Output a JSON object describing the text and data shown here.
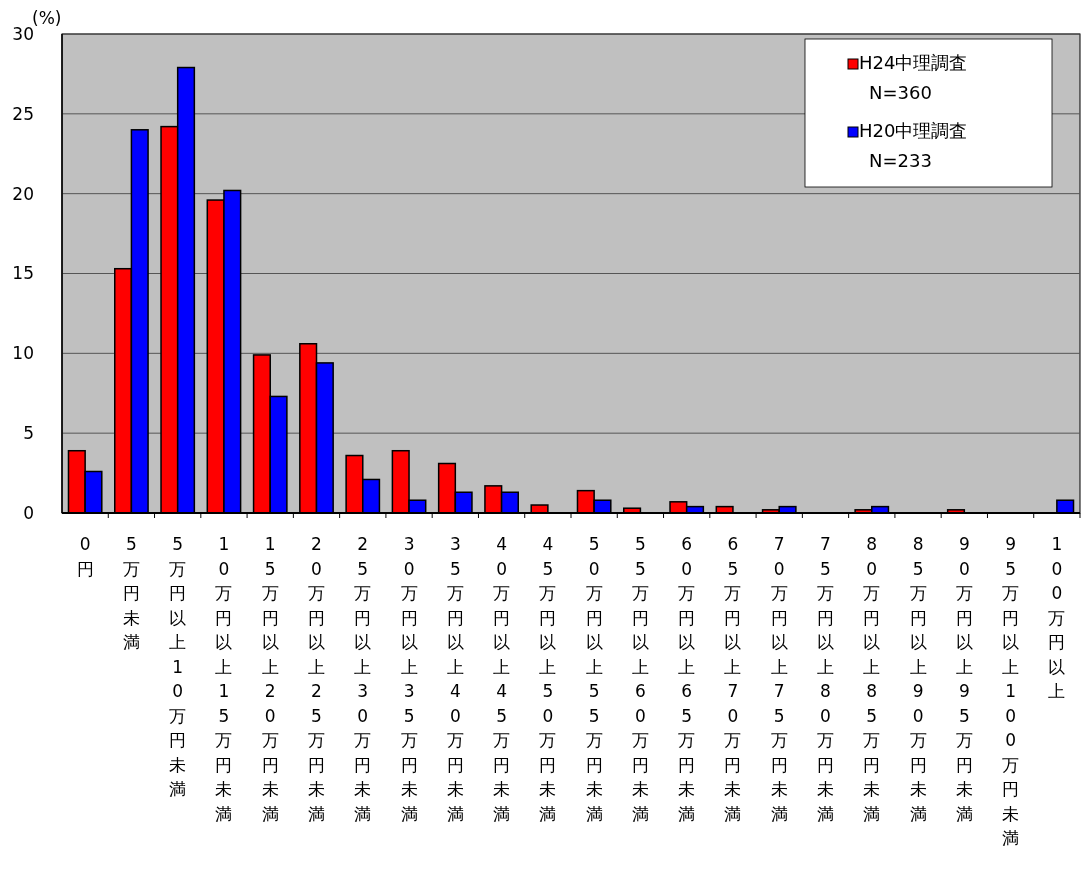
{
  "chart_data": {
    "type": "bar",
    "ylabel": "(%)",
    "categories": [
      "0円",
      "5万円未満",
      "5万円以上10万円未満",
      "10万円以上15万円未満",
      "15万円以上20万円未満",
      "20万円以上25万円未満",
      "25万円以上30万円未満",
      "30万円以上35万円未満",
      "35万円以上40万円未満",
      "40万円以上45万円未満",
      "45万円以上50万円未満",
      "50万円以上55万円未満",
      "55万円以上60万円未満",
      "60万円以上65万円未満",
      "65万円以上70万円未満",
      "70万円以上75万円未満",
      "75万円以上80万円未満",
      "80万円以上85万円未満",
      "85万円以上90万円未満",
      "90万円以上95万円未満",
      "95万円以上100万円未満",
      "100万円以上"
    ],
    "series": [
      {
        "name": "H24中理調査\nN=360",
        "color": "#ff0000",
        "values": [
          3.9,
          15.3,
          24.2,
          19.6,
          9.9,
          10.6,
          3.6,
          3.9,
          3.1,
          1.7,
          0.5,
          1.4,
          0.3,
          0.7,
          0.4,
          0.2,
          0,
          0.2,
          0,
          0.2,
          0,
          0
        ]
      },
      {
        "name": "H20中理調査\nN=233",
        "color": "#0000ff",
        "values": [
          2.6,
          24.0,
          27.9,
          20.2,
          7.3,
          9.4,
          2.1,
          0.8,
          1.3,
          1.3,
          0,
          0.8,
          0,
          0.4,
          0,
          0.4,
          0,
          0.4,
          0,
          0,
          0,
          0.8
        ]
      }
    ],
    "ylim": [
      0,
      30
    ],
    "yticks": [
      0,
      5,
      10,
      15,
      20,
      25,
      30
    ],
    "grid": "y",
    "legend": "top right"
  }
}
